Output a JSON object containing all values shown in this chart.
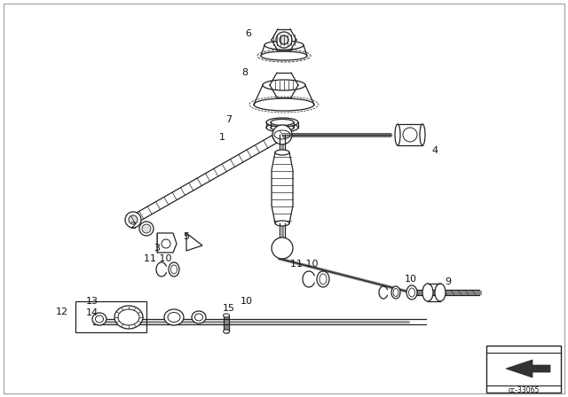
{
  "bg_color": "#ffffff",
  "line_color": "#222222",
  "text_color": "#111111",
  "watermark": "cc-33065",
  "fig_width": 6.4,
  "fig_height": 4.48,
  "dpi": 100
}
